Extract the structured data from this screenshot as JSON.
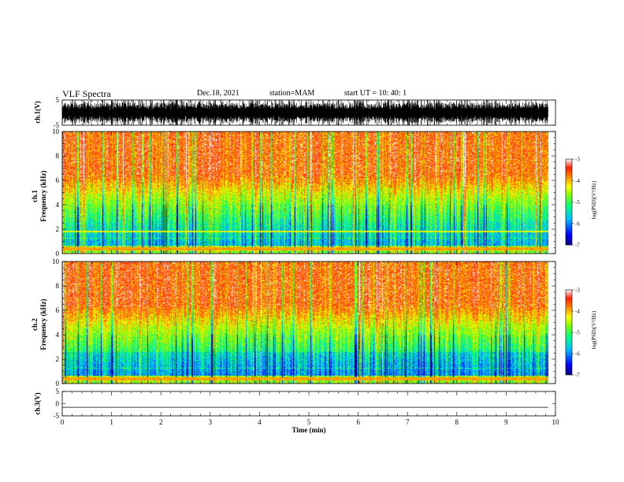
{
  "header": {
    "title": "VLF Spectra",
    "date": "Dec.18, 2021",
    "station": "station=MAM",
    "start_ut": "start  UT  =   10: 40: 1"
  },
  "chart_data": [
    {
      "type": "line",
      "panel": "ch1-waveform",
      "ylabel": "ch.1(V)",
      "ylim": [
        -5,
        5
      ],
      "yticks": [
        "5",
        "-5"
      ],
      "xlim": [
        0,
        10
      ]
    },
    {
      "type": "heatmap",
      "panel": "ch1-spectrogram",
      "ylabel_line1": "ch.1",
      "ylabel_line2": "Frequency  (kHz)",
      "ylim": [
        0,
        10
      ],
      "yticks": [
        "0",
        "2",
        "4",
        "6",
        "8",
        "10"
      ],
      "colorbar": {
        "label": "log(PSD)(V²/Hz)",
        "ticks": [
          "-3",
          "-4",
          "-5",
          "-6",
          "-7"
        ],
        "range": [
          -7,
          -3
        ]
      }
    },
    {
      "type": "heatmap",
      "panel": "ch2-spectrogram",
      "ylabel_line1": "ch.2",
      "ylabel_line2": "Frequency  (kHz)",
      "ylim": [
        0,
        10
      ],
      "yticks": [
        "0",
        "2",
        "4",
        "6",
        "8",
        "10"
      ],
      "colorbar": {
        "label": "log(PSD)(V²/Hz)",
        "ticks": [
          "-3",
          "-4",
          "-5",
          "-6",
          "-7"
        ],
        "range": [
          -7,
          -3
        ]
      }
    },
    {
      "type": "line",
      "panel": "ch3-waveform",
      "ylabel": "ch.3(V)",
      "ylim": [
        -5,
        5
      ],
      "yticks": [
        "5",
        "0",
        "-5"
      ],
      "value": -1.5,
      "xlabel": "Time  (min)",
      "xlim": [
        0,
        10
      ],
      "xticks": [
        "0",
        "1",
        "2",
        "3",
        "4",
        "5",
        "6",
        "7",
        "8",
        "9",
        "10"
      ],
      "data_end_x": 9.85
    }
  ],
  "colors": {
    "colormap": [
      "#000080",
      "#0000ff",
      "#00bfff",
      "#00ff80",
      "#80ff00",
      "#ffff00",
      "#ff8000",
      "#ff2000",
      "#ffffff"
    ]
  }
}
